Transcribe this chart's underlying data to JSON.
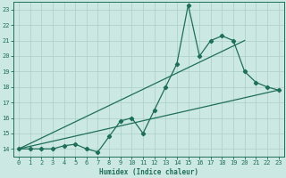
{
  "xlabel": "Humidex (Indice chaleur)",
  "bg_color": "#cce8e2",
  "grid_color": "#aacfc8",
  "line_color": "#1e6e5a",
  "xlim": [
    -0.5,
    23.5
  ],
  "ylim": [
    13.5,
    23.5
  ],
  "yticks": [
    14,
    15,
    16,
    17,
    18,
    19,
    20,
    21,
    22,
    23
  ],
  "xticks": [
    0,
    1,
    2,
    3,
    4,
    5,
    6,
    7,
    8,
    9,
    10,
    11,
    12,
    13,
    14,
    15,
    16,
    17,
    18,
    19,
    20,
    21,
    22,
    23
  ],
  "line1_x": [
    0,
    1,
    2,
    3,
    4,
    5,
    6,
    7,
    8,
    9,
    10,
    11,
    12,
    13,
    14,
    15,
    16,
    17,
    18,
    19,
    20,
    21,
    22,
    23
  ],
  "line1_y": [
    14,
    14,
    14,
    14,
    14.2,
    14.3,
    14.0,
    13.8,
    14.8,
    15.8,
    16.0,
    15.0,
    16.5,
    18.0,
    19.5,
    23.3,
    20.0,
    21.0,
    21.3,
    21.0,
    19.0,
    18.3,
    18.0,
    17.8
  ],
  "line2_x": [
    0,
    23
  ],
  "line2_y": [
    14.0,
    17.8
  ],
  "line3_x": [
    0,
    20
  ],
  "line3_y": [
    14.0,
    21.0
  ]
}
